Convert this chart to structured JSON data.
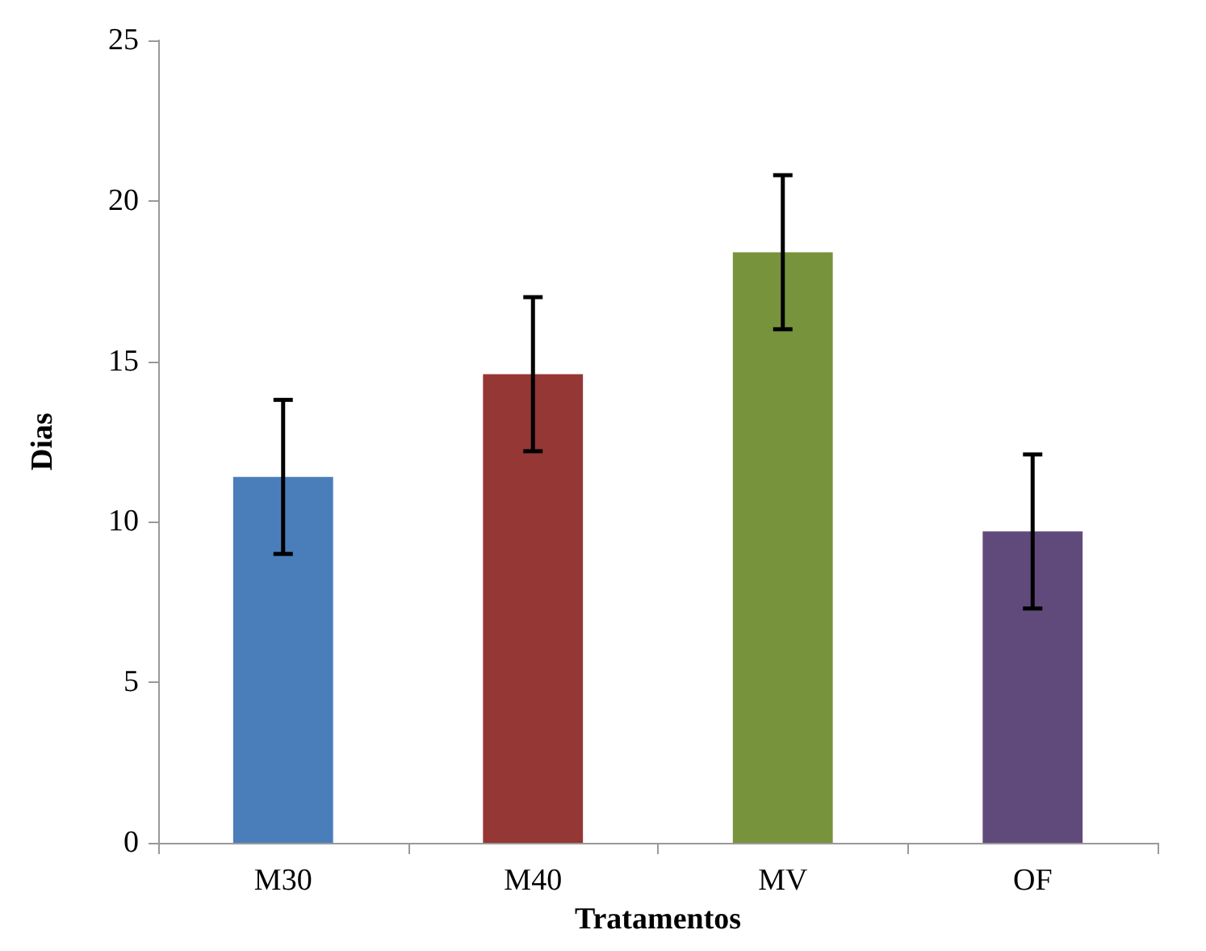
{
  "chart_data": {
    "type": "bar",
    "xlabel": "Tratamentos",
    "ylabel": "Dias",
    "categories": [
      "M30",
      "M40",
      "MV",
      "OF"
    ],
    "values": [
      11.4,
      14.6,
      18.4,
      9.7
    ],
    "errors": [
      2.4,
      2.4,
      2.4,
      2.4
    ],
    "colors": [
      "#4a7ebb",
      "#953735",
      "#77933c",
      "#604a7b"
    ],
    "ylim": [
      0,
      25
    ],
    "yticks": [
      0,
      5,
      10,
      15,
      20,
      25
    ],
    "grid": false
  }
}
